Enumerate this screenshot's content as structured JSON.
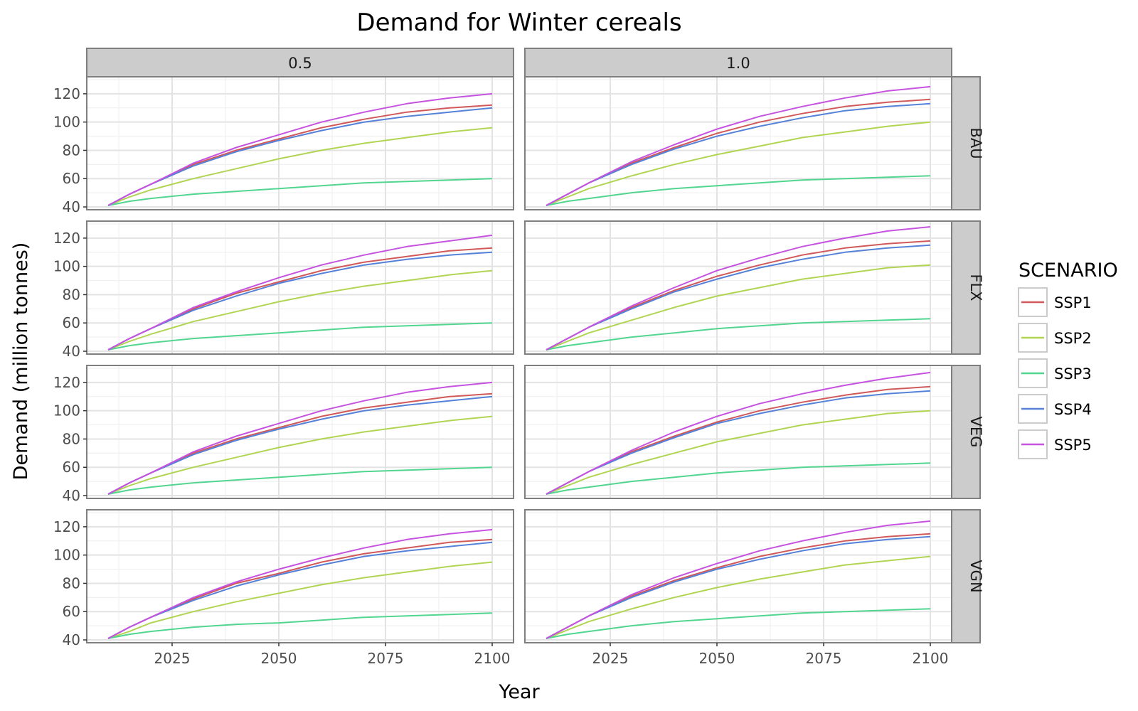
{
  "chart_data": {
    "type": "line",
    "title": "Demand for Winter cereals",
    "xlabel": "Year",
    "ylabel": "Demand (million tonnes)",
    "facet_columns": [
      "0.5",
      "1.0"
    ],
    "facet_rows": [
      "BAU",
      "FLX",
      "VEG",
      "VGN"
    ],
    "xlim": [
      2005,
      2105
    ],
    "ylim": [
      38,
      132
    ],
    "x_ticks": [
      2025,
      2050,
      2075,
      2100
    ],
    "y_ticks": [
      40,
      60,
      80,
      100,
      120
    ],
    "grid": true,
    "legend": {
      "title": "SCENARIO",
      "position": "right",
      "entries": [
        "SSP1",
        "SSP2",
        "SSP3",
        "SSP4",
        "SSP5"
      ]
    },
    "colors": {
      "SSP1": "#d1595a",
      "SSP2": "#b1d553",
      "SSP3": "#52d68f",
      "SSP4": "#5582d8",
      "SSP5": "#c653e0"
    },
    "x": [
      2010,
      2015,
      2020,
      2030,
      2040,
      2050,
      2060,
      2070,
      2080,
      2090,
      2100
    ],
    "panels": [
      {
        "row": "BAU",
        "col": "0.5",
        "series": [
          {
            "name": "SSP1",
            "values": [
              41,
              49,
              56,
              70,
              80,
              88,
              96,
              102,
              107,
              110,
              112
            ]
          },
          {
            "name": "SSP2",
            "values": [
              41,
              47,
              52,
              60,
              67,
              74,
              80,
              85,
              89,
              93,
              96
            ]
          },
          {
            "name": "SSP3",
            "values": [
              41,
              44,
              46,
              49,
              51,
              53,
              55,
              57,
              58,
              59,
              60
            ]
          },
          {
            "name": "SSP4",
            "values": [
              41,
              49,
              56,
              69,
              79,
              87,
              94,
              100,
              104,
              107,
              110
            ]
          },
          {
            "name": "SSP5",
            "values": [
              41,
              49,
              56,
              71,
              82,
              91,
              100,
              107,
              113,
              117,
              120
            ]
          }
        ]
      },
      {
        "row": "BAU",
        "col": "1.0",
        "series": [
          {
            "name": "SSP1",
            "values": [
              41,
              49,
              57,
              71,
              82,
              92,
              100,
              106,
              111,
              114,
              116
            ]
          },
          {
            "name": "SSP2",
            "values": [
              41,
              47,
              53,
              62,
              70,
              77,
              83,
              89,
              93,
              97,
              100
            ]
          },
          {
            "name": "SSP3",
            "values": [
              41,
              44,
              46,
              50,
              53,
              55,
              57,
              59,
              60,
              61,
              62
            ]
          },
          {
            "name": "SSP4",
            "values": [
              41,
              49,
              57,
              70,
              81,
              90,
              97,
              103,
              108,
              111,
              113
            ]
          },
          {
            "name": "SSP5",
            "values": [
              41,
              49,
              57,
              72,
              84,
              95,
              104,
              111,
              117,
              122,
              125
            ]
          }
        ]
      },
      {
        "row": "FLX",
        "col": "0.5",
        "series": [
          {
            "name": "SSP1",
            "values": [
              41,
              49,
              56,
              70,
              81,
              89,
              97,
              103,
              107,
              111,
              113
            ]
          },
          {
            "name": "SSP2",
            "values": [
              41,
              47,
              52,
              61,
              68,
              75,
              81,
              86,
              90,
              94,
              97
            ]
          },
          {
            "name": "SSP3",
            "values": [
              41,
              44,
              46,
              49,
              51,
              53,
              55,
              57,
              58,
              59,
              60
            ]
          },
          {
            "name": "SSP4",
            "values": [
              41,
              49,
              56,
              69,
              79,
              88,
              95,
              101,
              105,
              108,
              110
            ]
          },
          {
            "name": "SSP5",
            "values": [
              41,
              49,
              56,
              71,
              82,
              92,
              101,
              108,
              114,
              118,
              122
            ]
          }
        ]
      },
      {
        "row": "FLX",
        "col": "1.0",
        "series": [
          {
            "name": "SSP1",
            "values": [
              41,
              49,
              57,
              71,
              83,
              93,
              101,
              108,
              113,
              116,
              118
            ]
          },
          {
            "name": "SSP2",
            "values": [
              41,
              47,
              53,
              62,
              71,
              79,
              85,
              91,
              95,
              99,
              101
            ]
          },
          {
            "name": "SSP3",
            "values": [
              41,
              44,
              46,
              50,
              53,
              56,
              58,
              60,
              61,
              62,
              63
            ]
          },
          {
            "name": "SSP4",
            "values": [
              41,
              49,
              57,
              70,
              82,
              91,
              99,
              105,
              110,
              113,
              115
            ]
          },
          {
            "name": "SSP5",
            "values": [
              41,
              49,
              57,
              72,
              85,
              97,
              106,
              114,
              120,
              125,
              128
            ]
          }
        ]
      },
      {
        "row": "VEG",
        "col": "0.5",
        "series": [
          {
            "name": "SSP1",
            "values": [
              41,
              49,
              56,
              70,
              80,
              88,
              96,
              102,
              106,
              110,
              112
            ]
          },
          {
            "name": "SSP2",
            "values": [
              41,
              47,
              52,
              60,
              67,
              74,
              80,
              85,
              89,
              93,
              96
            ]
          },
          {
            "name": "SSP3",
            "values": [
              41,
              44,
              46,
              49,
              51,
              53,
              55,
              57,
              58,
              59,
              60
            ]
          },
          {
            "name": "SSP4",
            "values": [
              41,
              49,
              56,
              69,
              79,
              87,
              94,
              100,
              104,
              107,
              110
            ]
          },
          {
            "name": "SSP5",
            "values": [
              41,
              49,
              56,
              71,
              82,
              91,
              100,
              107,
              113,
              117,
              120
            ]
          }
        ]
      },
      {
        "row": "VEG",
        "col": "1.0",
        "series": [
          {
            "name": "SSP1",
            "values": [
              41,
              49,
              57,
              71,
              82,
              92,
              100,
              106,
              111,
              115,
              117
            ]
          },
          {
            "name": "SSP2",
            "values": [
              41,
              47,
              53,
              62,
              70,
              78,
              84,
              90,
              94,
              98,
              100
            ]
          },
          {
            "name": "SSP3",
            "values": [
              41,
              44,
              46,
              50,
              53,
              56,
              58,
              60,
              61,
              62,
              63
            ]
          },
          {
            "name": "SSP4",
            "values": [
              41,
              49,
              57,
              70,
              81,
              91,
              98,
              104,
              109,
              112,
              114
            ]
          },
          {
            "name": "SSP5",
            "values": [
              41,
              49,
              57,
              72,
              85,
              96,
              105,
              112,
              118,
              123,
              127
            ]
          }
        ]
      },
      {
        "row": "VGN",
        "col": "0.5",
        "series": [
          {
            "name": "SSP1",
            "values": [
              41,
              49,
              56,
              69,
              80,
              87,
              95,
              101,
              105,
              109,
              111
            ]
          },
          {
            "name": "SSP2",
            "values": [
              41,
              46,
              52,
              60,
              67,
              73,
              79,
              84,
              88,
              92,
              95
            ]
          },
          {
            "name": "SSP3",
            "values": [
              41,
              44,
              46,
              49,
              51,
              52,
              54,
              56,
              57,
              58,
              59
            ]
          },
          {
            "name": "SSP4",
            "values": [
              41,
              49,
              56,
              68,
              78,
              86,
              93,
              99,
              103,
              106,
              109
            ]
          },
          {
            "name": "SSP5",
            "values": [
              41,
              49,
              56,
              70,
              81,
              90,
              98,
              105,
              111,
              115,
              118
            ]
          }
        ]
      },
      {
        "row": "VGN",
        "col": "1.0",
        "series": [
          {
            "name": "SSP1",
            "values": [
              41,
              49,
              57,
              71,
              82,
              91,
              99,
              105,
              110,
              113,
              115
            ]
          },
          {
            "name": "SSP2",
            "values": [
              41,
              47,
              53,
              62,
              70,
              77,
              83,
              88,
              93,
              96,
              99
            ]
          },
          {
            "name": "SSP3",
            "values": [
              41,
              44,
              46,
              50,
              53,
              55,
              57,
              59,
              60,
              61,
              62
            ]
          },
          {
            "name": "SSP4",
            "values": [
              41,
              49,
              57,
              70,
              81,
              90,
              97,
              103,
              108,
              111,
              113
            ]
          },
          {
            "name": "SSP5",
            "values": [
              41,
              49,
              57,
              72,
              84,
              94,
              103,
              110,
              116,
              121,
              124
            ]
          }
        ]
      }
    ]
  }
}
